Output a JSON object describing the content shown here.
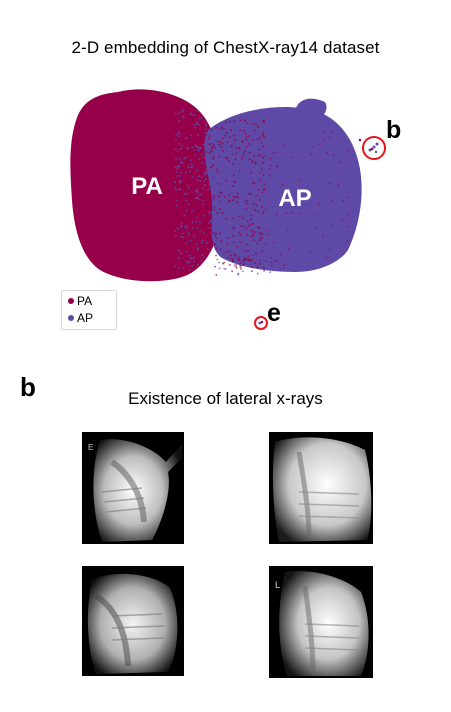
{
  "figure": {
    "title": "2-D embedding of ChestX-ray14 dataset",
    "cluster_labels": {
      "pa": "PA",
      "ap": "AP"
    },
    "callouts": {
      "b": "b",
      "e": "e"
    },
    "legend": [
      {
        "label": "PA",
        "color": "#96004a"
      },
      {
        "label": "AP",
        "color": "#5e4aa6"
      }
    ]
  },
  "panel_b": {
    "letter": "b",
    "title": "Existence of lateral x-rays",
    "images": [
      {
        "name": "lateral-xray-1",
        "marker": "E"
      },
      {
        "name": "lateral-xray-2",
        "marker": ""
      },
      {
        "name": "lateral-xray-3",
        "marker": ""
      },
      {
        "name": "lateral-xray-4",
        "marker": "L"
      }
    ]
  },
  "colors": {
    "pa": "#96004a",
    "ap": "#5e4aa6",
    "highlight": "#e8141c"
  }
}
